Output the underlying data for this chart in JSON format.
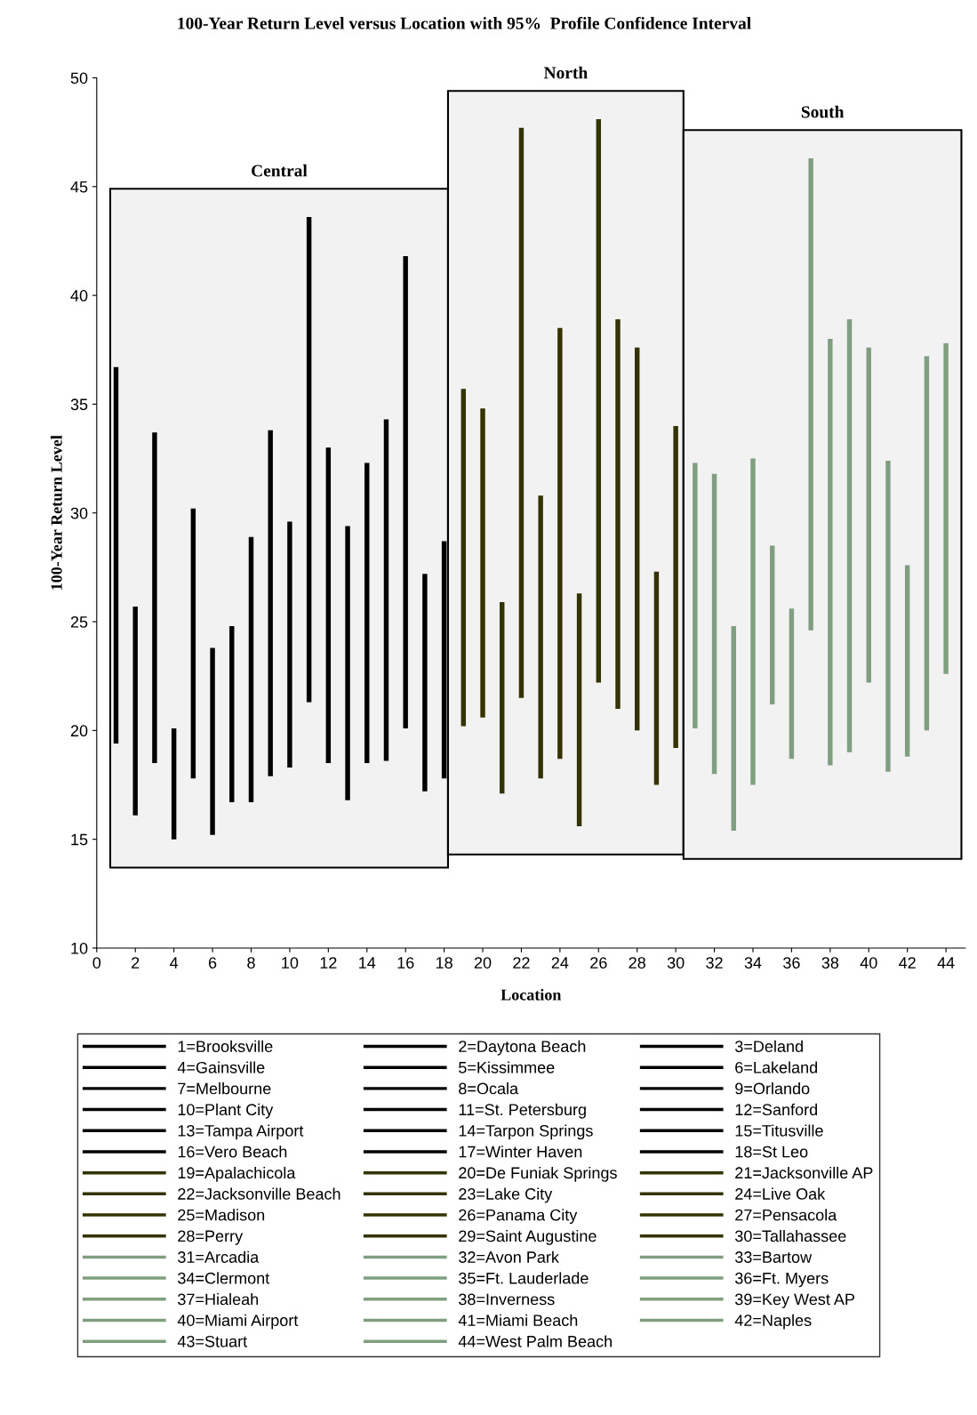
{
  "chart_data": {
    "type": "bar",
    "title": "100-Year Return Level versus Location with 95%  Profile Confidence Interval",
    "xlabel": "Location",
    "ylabel": "100-Year Return Level",
    "xlim": [
      0,
      45
    ],
    "xticks": [
      0,
      2,
      4,
      6,
      8,
      10,
      12,
      14,
      16,
      18,
      20,
      22,
      24,
      26,
      28,
      30,
      32,
      34,
      36,
      38,
      40,
      42,
      44
    ],
    "ylim": [
      10,
      50
    ],
    "yticks": [
      10,
      15,
      20,
      25,
      30,
      35,
      40,
      45,
      50
    ],
    "grid": false,
    "legend": "bottom",
    "bands": [
      {
        "axis": "x",
        "from": 0.7,
        "to": 18.2,
        "label": "Central",
        "color": "#f2f2f2"
      },
      {
        "axis": "x",
        "from": 18.2,
        "to": 30.4,
        "label": "North",
        "color": "#f2f2f2"
      },
      {
        "axis": "x",
        "from": 30.4,
        "to": 44.8,
        "label": "South",
        "color": "#f2f2f2"
      }
    ],
    "series": [
      {
        "name": "1=Brooksville",
        "color": "#000000",
        "x": [
          1
        ],
        "base": [
          19.4
        ],
        "values": [
          17.3
        ]
      },
      {
        "name": "2=Daytona Beach",
        "color": "#000000",
        "x": [
          2
        ],
        "base": [
          16.1
        ],
        "values": [
          9.6
        ]
      },
      {
        "name": "3=Deland",
        "color": "#000000",
        "x": [
          3
        ],
        "base": [
          18.5
        ],
        "values": [
          15.2
        ]
      },
      {
        "name": "4=Gainsville",
        "color": "#000000",
        "x": [
          4
        ],
        "base": [
          15.0
        ],
        "values": [
          5.1
        ]
      },
      {
        "name": "5=Kissimmee",
        "color": "#000000",
        "x": [
          5
        ],
        "base": [
          17.8
        ],
        "values": [
          12.4
        ]
      },
      {
        "name": "6=Lakeland",
        "color": "#000000",
        "x": [
          6
        ],
        "base": [
          15.2
        ],
        "values": [
          8.6
        ]
      },
      {
        "name": "7=Melbourne",
        "color": "#000000",
        "x": [
          7
        ],
        "base": [
          16.7
        ],
        "values": [
          8.1
        ]
      },
      {
        "name": "8=Ocala",
        "color": "#000000",
        "x": [
          8
        ],
        "base": [
          16.7
        ],
        "values": [
          12.2
        ]
      },
      {
        "name": "9=Orlando",
        "color": "#000000",
        "x": [
          9
        ],
        "base": [
          17.9
        ],
        "values": [
          15.9
        ]
      },
      {
        "name": "10=Plant City",
        "color": "#000000",
        "x": [
          10
        ],
        "base": [
          18.3
        ],
        "values": [
          11.3
        ]
      },
      {
        "name": "11=St. Petersburg",
        "color": "#000000",
        "x": [
          11
        ],
        "base": [
          21.3
        ],
        "values": [
          22.3
        ]
      },
      {
        "name": "12=Sanford",
        "color": "#000000",
        "x": [
          12
        ],
        "base": [
          18.5
        ],
        "values": [
          14.5
        ]
      },
      {
        "name": "13=Tampa Airport",
        "color": "#000000",
        "x": [
          13
        ],
        "base": [
          16.8
        ],
        "values": [
          12.6
        ]
      },
      {
        "name": "14=Tarpon Springs",
        "color": "#000000",
        "x": [
          14
        ],
        "base": [
          18.5
        ],
        "values": [
          13.8
        ]
      },
      {
        "name": "15=Titusville",
        "color": "#000000",
        "x": [
          15
        ],
        "base": [
          18.6
        ],
        "values": [
          15.7
        ]
      },
      {
        "name": "16=Vero Beach",
        "color": "#000000",
        "x": [
          16
        ],
        "base": [
          20.1
        ],
        "values": [
          21.7
        ]
      },
      {
        "name": "17=Winter Haven",
        "color": "#000000",
        "x": [
          17
        ],
        "base": [
          17.2
        ],
        "values": [
          10.0
        ]
      },
      {
        "name": "18=St Leo",
        "color": "#000000",
        "x": [
          18
        ],
        "base": [
          17.8
        ],
        "values": [
          10.9
        ]
      },
      {
        "name": "19=Apalachicola",
        "color": "#333300",
        "x": [
          19
        ],
        "base": [
          20.2
        ],
        "values": [
          15.5
        ]
      },
      {
        "name": "20=De Funiak Springs",
        "color": "#333300",
        "x": [
          20
        ],
        "base": [
          20.6
        ],
        "values": [
          14.2
        ]
      },
      {
        "name": "21=Jacksonville AP",
        "color": "#333300",
        "x": [
          21
        ],
        "base": [
          17.1
        ],
        "values": [
          8.8
        ]
      },
      {
        "name": "22=Jacksonville Beach",
        "color": "#333300",
        "x": [
          22
        ],
        "base": [
          21.5
        ],
        "values": [
          26.2
        ]
      },
      {
        "name": "23=Lake City",
        "color": "#333300",
        "x": [
          23
        ],
        "base": [
          17.8
        ],
        "values": [
          13.0
        ]
      },
      {
        "name": "24=Live Oak",
        "color": "#333300",
        "x": [
          24
        ],
        "base": [
          18.7
        ],
        "values": [
          19.8
        ]
      },
      {
        "name": "25=Madison",
        "color": "#333300",
        "x": [
          25
        ],
        "base": [
          15.6
        ],
        "values": [
          10.7
        ]
      },
      {
        "name": "26=Panama City",
        "color": "#333300",
        "x": [
          26
        ],
        "base": [
          22.2
        ],
        "values": [
          25.9
        ]
      },
      {
        "name": "27=Pensacola",
        "color": "#333300",
        "x": [
          27
        ],
        "base": [
          21.0
        ],
        "values": [
          17.9
        ]
      },
      {
        "name": "28=Perry",
        "color": "#333300",
        "x": [
          28
        ],
        "base": [
          20.0
        ],
        "values": [
          17.6
        ]
      },
      {
        "name": "29=Saint Augustine",
        "color": "#333300",
        "x": [
          29
        ],
        "base": [
          17.5
        ],
        "values": [
          9.8
        ]
      },
      {
        "name": "30=Tallahassee",
        "color": "#333300",
        "x": [
          30
        ],
        "base": [
          19.2
        ],
        "values": [
          14.8
        ]
      },
      {
        "name": "31=Arcadia",
        "color": "#809f80",
        "x": [
          31
        ],
        "base": [
          20.1
        ],
        "values": [
          12.2
        ]
      },
      {
        "name": "32=Avon Park",
        "color": "#809f80",
        "x": [
          32
        ],
        "base": [
          18.0
        ],
        "values": [
          13.8
        ]
      },
      {
        "name": "33=Bartow",
        "color": "#809f80",
        "x": [
          33
        ],
        "base": [
          15.4
        ],
        "values": [
          9.4
        ]
      },
      {
        "name": "34=Clermont",
        "color": "#809f80",
        "x": [
          34
        ],
        "base": [
          17.5
        ],
        "values": [
          15.0
        ]
      },
      {
        "name": "35=Ft. Lauderlade",
        "color": "#809f80",
        "x": [
          35
        ],
        "base": [
          21.2
        ],
        "values": [
          7.3
        ]
      },
      {
        "name": "36=Ft. Myers",
        "color": "#809f80",
        "x": [
          36
        ],
        "base": [
          18.7
        ],
        "values": [
          6.9
        ]
      },
      {
        "name": "37=Hialeah",
        "color": "#809f80",
        "x": [
          37
        ],
        "base": [
          24.6
        ],
        "values": [
          21.7
        ]
      },
      {
        "name": "38=Inverness",
        "color": "#809f80",
        "x": [
          38
        ],
        "base": [
          18.4
        ],
        "values": [
          19.6
        ]
      },
      {
        "name": "39=Key West AP",
        "color": "#809f80",
        "x": [
          39
        ],
        "base": [
          19.0
        ],
        "values": [
          19.9
        ]
      },
      {
        "name": "40=Miami Airport",
        "color": "#809f80",
        "x": [
          40
        ],
        "base": [
          22.2
        ],
        "values": [
          15.4
        ]
      },
      {
        "name": "41=Miami Beach",
        "color": "#809f80",
        "x": [
          41
        ],
        "base": [
          18.1
        ],
        "values": [
          14.3
        ]
      },
      {
        "name": "42=Naples",
        "color": "#809f80",
        "x": [
          42
        ],
        "base": [
          18.8
        ],
        "values": [
          8.8
        ]
      },
      {
        "name": "43=Stuart",
        "color": "#809f80",
        "x": [
          43
        ],
        "base": [
          20.0
        ],
        "values": [
          17.2
        ]
      },
      {
        "name": "44=West Palm Beach",
        "color": "#809f80",
        "x": [
          44
        ],
        "base": [
          22.6
        ],
        "values": [
          15.2
        ]
      }
    ]
  }
}
